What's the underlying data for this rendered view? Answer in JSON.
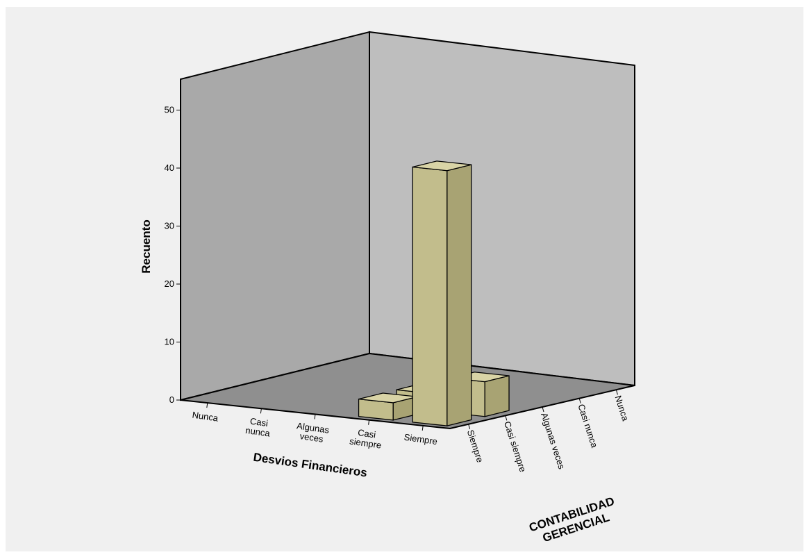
{
  "chart_data": {
    "type": "bar3d",
    "title": "",
    "ylabel": "Recuento",
    "xlabel": "Desvios Financieros",
    "zlabel_lines": [
      "CONTABILIDAD",
      "GERENCIAL"
    ],
    "x_categories": [
      [
        "Nunca"
      ],
      [
        "Casi",
        "nunca"
      ],
      [
        "Algunas",
        "veces"
      ],
      [
        "Casi",
        "siempre"
      ],
      [
        "Siempre"
      ]
    ],
    "z_categories": [
      "Siempre",
      "Casi siempre",
      "Algunas veces",
      "Casi nunca",
      "Nunca"
    ],
    "yticks": [
      "0",
      "10",
      "20",
      "30",
      "40",
      "50"
    ],
    "ylim": [
      0,
      55
    ],
    "bars": [
      {
        "x": "Casi siempre",
        "z": "Siempre",
        "value": 3
      },
      {
        "x": "Casi siempre",
        "z": "Casi siempre",
        "value": 3
      },
      {
        "x": "Siempre",
        "z": "Siempre",
        "value": 44
      },
      {
        "x": "Siempre",
        "z": "Casi siempre",
        "value": 6
      }
    ],
    "colors": {
      "background": "#f0f0f0",
      "left_wall": "#a9a9a9",
      "back_wall": "#bebebe",
      "floor": "#8f8f8f",
      "bar_front": "#c2bd8c",
      "bar_side": "#a8a373",
      "bar_top": "#d9d4a6"
    }
  }
}
